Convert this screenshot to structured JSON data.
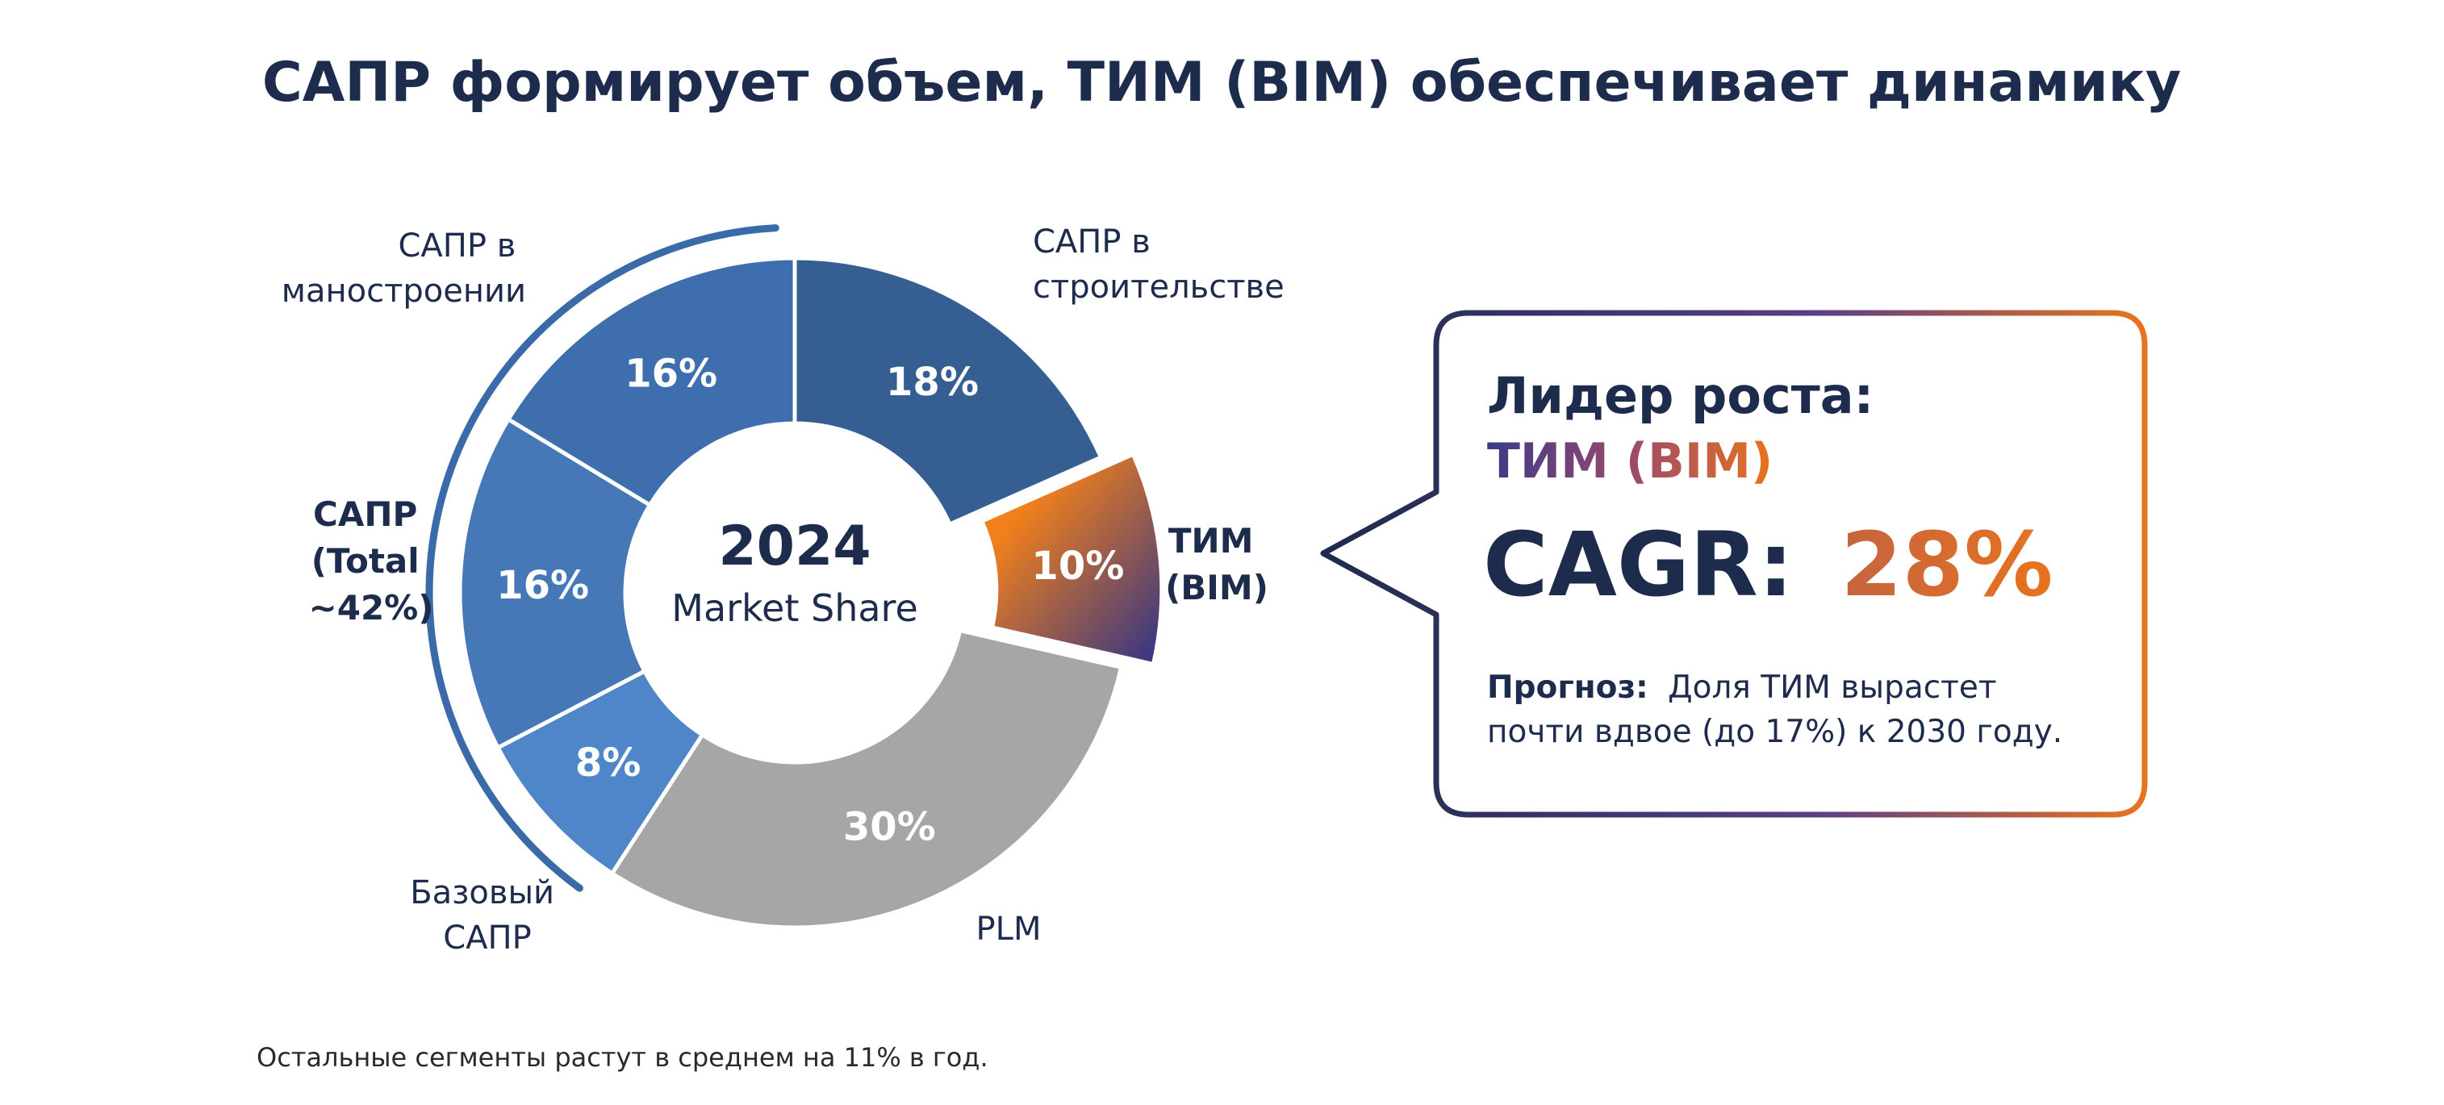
{
  "title": "САПР формирует объем, ТИМ (BIM) обеспечивает динамику",
  "chart_data": {
    "type": "pie",
    "variant": "donut",
    "center_label": {
      "year": "2024",
      "subtitle": "Market Share"
    },
    "start_angle_deg": 0,
    "direction": "clockwise",
    "exploded_slice": "tim",
    "slices": [
      {
        "key": "stroy",
        "label_lines": [
          "САПР в",
          "строительстве"
        ],
        "value": 18,
        "value_label": "18%",
        "color": "#355f92"
      },
      {
        "key": "tim",
        "label_lines": [
          "ТИМ",
          "(BIM)"
        ],
        "value": 10,
        "value_label": "10%",
        "color_from": "#f07f1c",
        "color_to": "#2f3388"
      },
      {
        "key": "plm",
        "label_lines": [
          "PLM"
        ],
        "value": 30,
        "value_label": "30%",
        "color": "#a6a6a6"
      },
      {
        "key": "base",
        "label_lines": [
          "Базовый",
          "САПР"
        ],
        "value": 8,
        "value_label": "8%",
        "color": "#4f86c9"
      },
      {
        "key": "mid",
        "label_lines": [],
        "value": 16,
        "value_label": "16%",
        "color": "#4678b8"
      },
      {
        "key": "mash",
        "label_lines": [
          "САПР в",
          "маностроении"
        ],
        "value": 16,
        "value_label": "16%",
        "color": "#3e6ead"
      }
    ],
    "group_bracket": {
      "label_lines": [
        "САПР",
        "(Total",
        "~42%)"
      ],
      "color": "#3a6aa8"
    }
  },
  "callout": {
    "heading": "Лидер роста:",
    "subheading": "ТИМ (BIM)",
    "metric_label": "CAGR:",
    "metric_value": "28%",
    "forecast_bold": "Прогноз:",
    "forecast_line1": "Доля ТИМ вырастет",
    "forecast_line2": "почти вдвое (до 17%) к 2030 году.",
    "colors": {
      "navy": "#1d2b4d",
      "orange": "#e8731e",
      "purple": "#6a3d8a"
    }
  },
  "footnote": "Остальные сегменты растут в среднем на 11% в год."
}
